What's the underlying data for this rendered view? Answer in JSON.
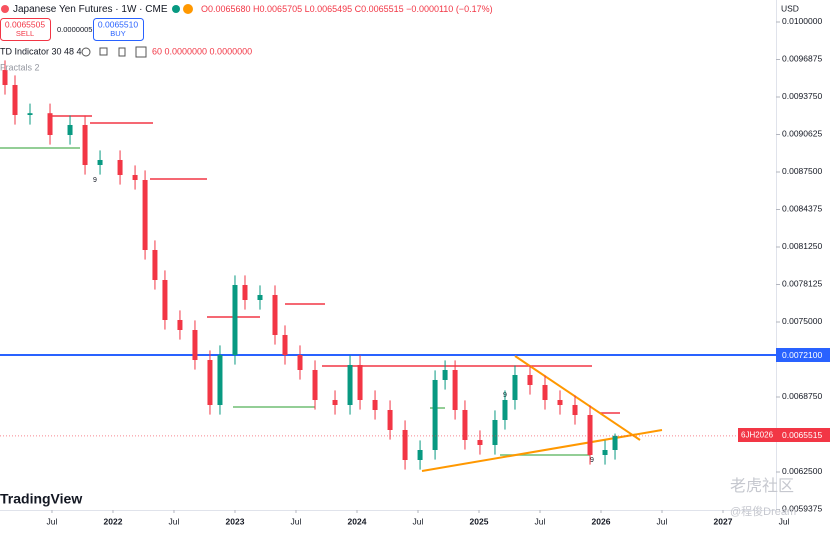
{
  "header": {
    "symbol": "Japanese Yen Futures · 1W · CME",
    "ohlc": "O0.0065680 H0.0065705 L0.0065495 C0.0065515 −0.0000110 (−0.17%)",
    "sell_price": "0.0065505",
    "sell": "SELL",
    "spread": "0.0000005",
    "buy_price": "0.0065510",
    "buy": "BUY",
    "indicator": "TD Indicator 30 48 4",
    "indicator_values": "60 0.0000000 0.0000000",
    "fractals": "Fractals 2",
    "currency": "USD",
    "ticker_tag": "6JH2026",
    "last_price": "0.0065515",
    "level_label": "0.0072100",
    "logo": "TradingView",
    "watermark": "老虎社区",
    "watermark_user": "@程俊Dream",
    "td_counts": [
      "9",
      "9",
      "9"
    ]
  },
  "chart_data": {
    "type": "candlestick",
    "up_color": "#089981",
    "down_color": "#f23645",
    "x": [
      2021.115,
      2021.197,
      2021.32,
      2021.484,
      2021.648,
      2021.771,
      2021.894,
      2022.058,
      2022.181,
      2022.263,
      2022.344,
      2022.426,
      2022.549,
      2022.672,
      2022.795,
      2022.877,
      2023.0,
      2023.082,
      2023.205,
      2023.328,
      2023.41,
      2023.533,
      2023.656,
      2023.82,
      2023.943,
      2024.025,
      2024.148,
      2024.271,
      2024.394,
      2024.517,
      2024.64,
      2024.722,
      2024.804,
      2024.885,
      2025.008,
      2025.131,
      2025.213,
      2025.295,
      2025.418,
      2025.541,
      2025.664,
      2025.787,
      2025.91,
      2026.033,
      2026.115
    ],
    "open": [
      0.0096,
      0.009475,
      0.009225,
      0.00924,
      0.0090583,
      0.0091417,
      0.0088083,
      0.00885,
      0.008725,
      0.0086833,
      0.0081,
      0.00785,
      0.0075167,
      0.0074333,
      0.0071833,
      0.0068083,
      0.007225,
      0.0078083,
      0.0076833,
      0.007725,
      0.0073917,
      0.007225,
      0.0071,
      0.00685,
      0.0068083,
      0.0071417,
      0.00685,
      0.0067667,
      0.0066,
      0.00635,
      0.0064333,
      0.0070167,
      0.0071,
      0.0067667,
      0.0065167,
      0.006475,
      0.0066833,
      0.00685,
      0.0070583,
      0.006975,
      0.00685,
      0.0068083,
      0.006725,
      0.0063917,
      0.0064333
    ],
    "high": [
      0.00968,
      0.009555,
      0.00932,
      0.00932,
      0.0092217,
      0.0092217,
      0.00893,
      0.00893,
      0.008805,
      0.0087633,
      0.00818,
      0.00793,
      0.0075967,
      0.0075133,
      0.0072633,
      0.007305,
      0.0078883,
      0.0078883,
      0.007805,
      0.007805,
      0.0074717,
      0.007305,
      0.00718,
      0.00693,
      0.0072217,
      0.0072217,
      0.00693,
      0.0068467,
      0.00668,
      0.0065133,
      0.0070967,
      0.00718,
      0.00718,
      0.0068467,
      0.0065967,
      0.0067633,
      0.00693,
      0.0071383,
      0.0071383,
      0.007055,
      0.00693,
      0.0068883,
      0.006805,
      0.0065133,
      0.0065705
    ],
    "low": [
      0.009395,
      0.009145,
      0.009145,
      0.0089783,
      0.0089783,
      0.0087283,
      0.0087283,
      0.008645,
      0.0086033,
      0.00802,
      0.00777,
      0.0074367,
      0.0073533,
      0.0071033,
      0.0067283,
      0.0067283,
      0.007145,
      0.0076033,
      0.0076033,
      0.0073117,
      0.007145,
      0.00702,
      0.00677,
      0.0067283,
      0.0067283,
      0.00677,
      0.0066867,
      0.00652,
      0.00627,
      0.00627,
      0.0063533,
      0.0069367,
      0.0066867,
      0.0064367,
      0.006395,
      0.006395,
      0.0066033,
      0.00677,
      0.006895,
      0.00677,
      0.0067283,
      0.006645,
      0.0063117,
      0.0063117,
      0.0063533
    ],
    "close": [
      0.009475,
      0.009225,
      0.00924,
      0.0090583,
      0.0091417,
      0.0088083,
      0.00885,
      0.008725,
      0.0086833,
      0.0081,
      0.00785,
      0.0075167,
      0.0074333,
      0.0071833,
      0.0068083,
      0.007225,
      0.0078083,
      0.0076833,
      0.007725,
      0.0073917,
      0.007225,
      0.0071,
      0.00685,
      0.0068083,
      0.0071417,
      0.00685,
      0.0067667,
      0.0066,
      0.00635,
      0.0064333,
      0.0070167,
      0.0071,
      0.0067667,
      0.0065167,
      0.006475,
      0.0066833,
      0.00685,
      0.0070583,
      0.006975,
      0.00685,
      0.0068083,
      0.006725,
      0.0063917,
      0.0064333,
      0.0065515
    ],
    "xlim": [
      2021.074,
      2027.877
    ],
    "xticks": [
      {
        "value": 2021.5,
        "label": "Jul"
      },
      2022,
      {
        "value": 2022.5,
        "label": "Jul"
      },
      2023,
      {
        "value": 2023.5,
        "label": "Jul"
      },
      2024,
      {
        "value": 2024.5,
        "label": "Jul"
      },
      2025,
      {
        "value": 2025.5,
        "label": "Jul"
      },
      2026,
      {
        "value": 2026.5,
        "label": "Jul"
      },
      2027,
      {
        "value": 2027.5,
        "label": "Jul"
      }
    ],
    "ylim": [
      0.0059333,
      0.0101833
    ],
    "yticks": [
      {
        "value": 0.01,
        "label": "0.0100000"
      },
      0.0096875,
      {
        "value": 0.009375,
        "label": "0.0093750"
      },
      0.0090625,
      {
        "value": 0.00875,
        "label": "0.0087500"
      },
      0.0084375,
      {
        "value": 0.008125,
        "label": "0.0081250"
      },
      0.0078125,
      {
        "value": 0.0075,
        "label": "0.0075000"
      },
      {
        "value": 0.006875,
        "label": "0.0068750"
      },
      {
        "value": 0.00625,
        "label": "0.0062500"
      },
      0.0059375
    ]
  }
}
